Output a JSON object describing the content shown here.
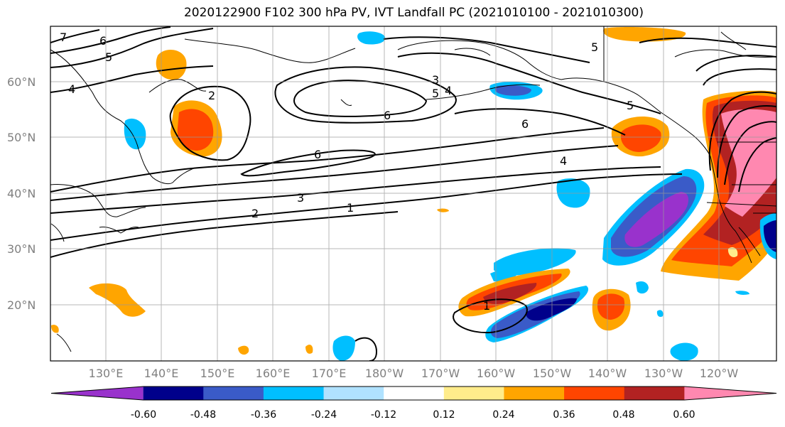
{
  "title": "2020122900 F102 300 hPa PV, IVT Landfall PC (2021010100 - 2021010300)",
  "lat_labels": [
    "60°N",
    "50°N",
    "40°N",
    "30°N",
    "20°N"
  ],
  "lon_labels": [
    "130°E",
    "140°E",
    "150°E",
    "160°E",
    "170°E",
    "180°W",
    "170°W",
    "160°W",
    "150°W",
    "140°W",
    "130°W",
    "120°W"
  ],
  "colorbar": {
    "colors": [
      "#9932CC",
      "#00008B",
      "#3A5BC8",
      "#00BFFF",
      "#B0E2FF",
      "#FFFFFF",
      "#FFEC8B",
      "#FFA500",
      "#FF4500",
      "#B22222",
      "#FF88B0"
    ],
    "tick_labels": [
      "-0.60",
      "-0.48",
      "-0.36",
      "-0.24",
      "-0.12",
      "0.12",
      "0.24",
      "0.36",
      "0.48",
      "0.60"
    ]
  },
  "contour_labels": [
    "7",
    "6",
    "5",
    "4",
    "2",
    "3",
    "4",
    "5",
    "6",
    "6",
    "5",
    "6",
    "4",
    "3",
    "2",
    "1",
    "1",
    "5"
  ]
}
